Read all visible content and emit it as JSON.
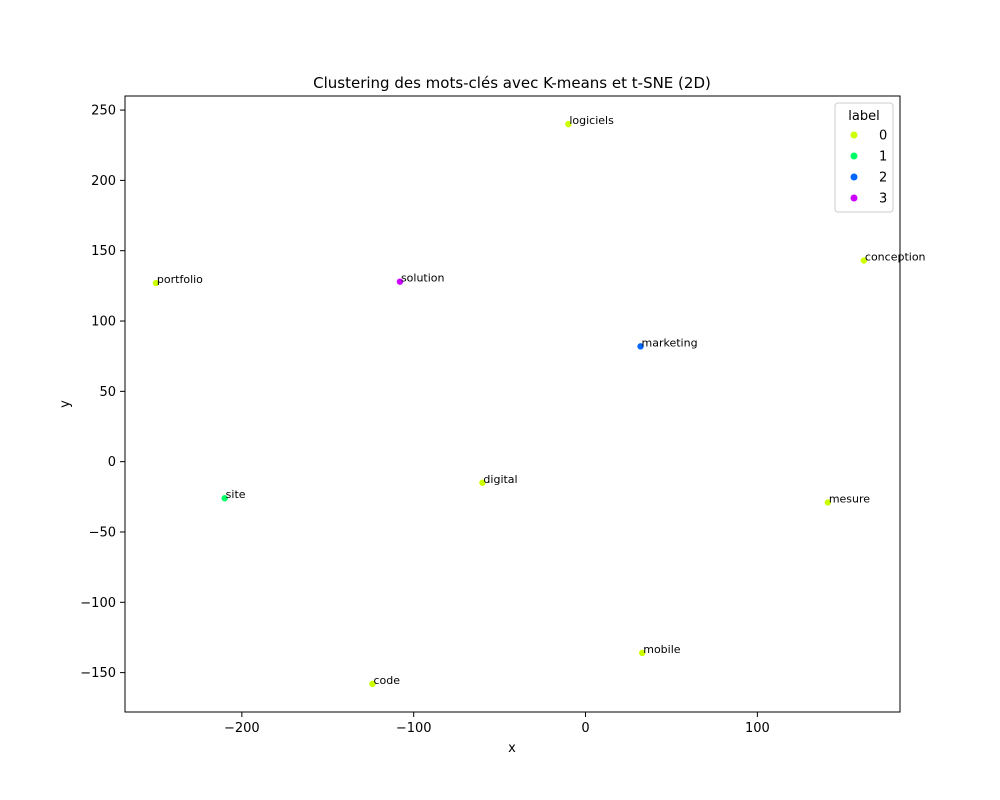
{
  "chart_data": {
    "type": "scatter",
    "title": "Clustering des mots-clés avec K-means et t-SNE (2D)",
    "xlabel": "x",
    "ylabel": "y",
    "xlim": [
      -268,
      183
    ],
    "ylim": [
      -178,
      260
    ],
    "xticks": [
      -200,
      -100,
      0,
      100
    ],
    "yticks": [
      -150,
      -100,
      -50,
      0,
      50,
      100,
      150,
      200,
      250
    ],
    "xtick_labels": [
      "−200",
      "−100",
      "0",
      "100"
    ],
    "ytick_labels": [
      "−150",
      "−100",
      "−50",
      "0",
      "50",
      "100",
      "150",
      "200",
      "250"
    ],
    "grid": false,
    "legend": {
      "title": "label",
      "placement": "top-right",
      "entries": [
        {
          "label": "0",
          "color": "#ccff00"
        },
        {
          "label": "1",
          "color": "#00ff66"
        },
        {
          "label": "2",
          "color": "#0066ff"
        },
        {
          "label": "3",
          "color": "#cc00ff"
        }
      ]
    },
    "points": [
      {
        "word": "logiciels",
        "x": -10,
        "y": 240,
        "label": 0
      },
      {
        "word": "conception",
        "x": 162,
        "y": 143,
        "label": 0
      },
      {
        "word": "portfolio",
        "x": -250,
        "y": 127,
        "label": 0
      },
      {
        "word": "solution",
        "x": -108,
        "y": 128,
        "label": 3
      },
      {
        "word": "marketing",
        "x": 32,
        "y": 82,
        "label": 2
      },
      {
        "word": "site",
        "x": -210,
        "y": -26,
        "label": 1
      },
      {
        "word": "digital",
        "x": -60,
        "y": -15,
        "label": 0
      },
      {
        "word": "mesure",
        "x": 141,
        "y": -29,
        "label": 0
      },
      {
        "word": "mobile",
        "x": 33,
        "y": -136,
        "label": 0
      },
      {
        "word": "code",
        "x": -124,
        "y": -158,
        "label": 0
      }
    ]
  }
}
